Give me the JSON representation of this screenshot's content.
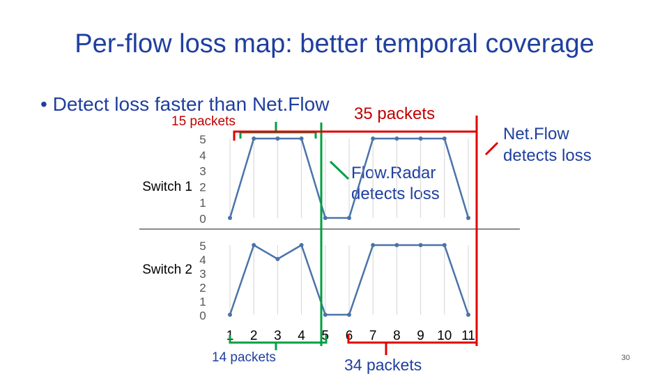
{
  "slide": {
    "title": "Per-flow loss map: better temporal coverage",
    "bullet_marker": "•",
    "bullet_text": "Detect loss faster than Net.Flow",
    "slide_number": "30"
  },
  "annotations": {
    "packets_15": "15 packets",
    "packets_35": "35 packets",
    "packets_14": "14 packets",
    "packets_34": "34 packets",
    "flowradar_line1": "Flow.Radar",
    "flowradar_line2": "detects loss",
    "netflow_line1": "Net.Flow",
    "netflow_line2": "detects loss"
  },
  "colors": {
    "title": "#1f3f9f",
    "series": "#4a73a8",
    "flowradar_marker": "#00a040",
    "netflow_marker": "#e00000",
    "axis_text": "#555555"
  },
  "chart_data": [
    {
      "type": "line",
      "series": [
        {
          "name": "Switch 1",
          "values": [
            0,
            5,
            5,
            5,
            0,
            0,
            5,
            5,
            5,
            5,
            0
          ]
        }
      ],
      "x": [
        1,
        2,
        3,
        4,
        5,
        6,
        7,
        8,
        9,
        10,
        11
      ],
      "ylim": [
        0,
        5
      ],
      "yticks": [
        0,
        1,
        2,
        3,
        4,
        5
      ],
      "grid": "vertical"
    },
    {
      "type": "line",
      "series": [
        {
          "name": "Switch 2",
          "values": [
            0,
            5,
            4,
            5,
            0,
            0,
            5,
            5,
            5,
            5,
            0
          ]
        }
      ],
      "x": [
        1,
        2,
        3,
        4,
        5,
        6,
        7,
        8,
        9,
        10,
        11
      ],
      "xticks": [
        "1",
        "2",
        "3",
        "4",
        "5",
        "6",
        "7",
        "8",
        "9",
        "10",
        "11"
      ],
      "ylim": [
        0,
        5
      ],
      "yticks": [
        0,
        1,
        2,
        3,
        4,
        5
      ],
      "grid": "vertical"
    }
  ]
}
